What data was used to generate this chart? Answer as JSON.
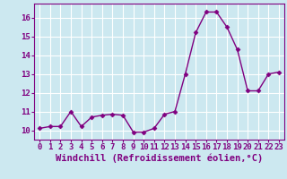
{
  "x": [
    0,
    1,
    2,
    3,
    4,
    5,
    6,
    7,
    8,
    9,
    10,
    11,
    12,
    13,
    14,
    15,
    16,
    17,
    18,
    19,
    20,
    21,
    22,
    23
  ],
  "y": [
    10.1,
    10.2,
    10.2,
    11.0,
    10.2,
    10.7,
    10.8,
    10.85,
    10.8,
    9.9,
    9.9,
    10.1,
    10.85,
    11.0,
    13.0,
    15.2,
    16.3,
    16.3,
    15.5,
    14.3,
    12.1,
    12.1,
    13.0,
    13.1
  ],
  "line_color": "#800080",
  "marker_color": "#800080",
  "bg_color": "#cce8f0",
  "grid_color": "#ffffff",
  "xlabel": "Windchill (Refroidissement éolien,°C)",
  "xlim": [
    -0.5,
    23.5
  ],
  "ylim": [
    9.5,
    16.75
  ],
  "yticks": [
    10,
    11,
    12,
    13,
    14,
    15,
    16
  ],
  "xticks": [
    0,
    1,
    2,
    3,
    4,
    5,
    6,
    7,
    8,
    9,
    10,
    11,
    12,
    13,
    14,
    15,
    16,
    17,
    18,
    19,
    20,
    21,
    22,
    23
  ],
  "tick_fontsize": 6.5,
  "label_fontsize": 7.5
}
